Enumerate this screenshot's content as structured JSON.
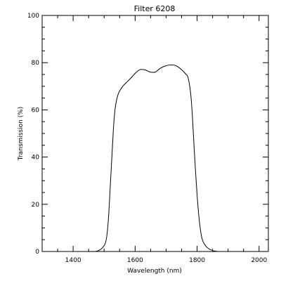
{
  "chart_data": {
    "type": "line",
    "title": "Filter 6208",
    "xlabel": "Wavelength (nm)",
    "ylabel": "Transmission (%)",
    "xlim": [
      1300,
      2030
    ],
    "ylim": [
      0,
      100
    ],
    "x_ticks": [
      1400,
      1600,
      1800,
      2000
    ],
    "y_ticks": [
      0,
      20,
      40,
      60,
      80,
      100
    ],
    "x_minor_step": 50,
    "y_minor_step": 5,
    "grid": false,
    "colors": {
      "line": "#000000",
      "axes": "#000000",
      "background": "#ffffff"
    },
    "series": [
      {
        "x": [
          1450,
          1470,
          1480,
          1490,
          1500,
          1505,
          1510,
          1515,
          1520,
          1525,
          1530,
          1535,
          1540,
          1545,
          1550,
          1560,
          1575,
          1590,
          1600,
          1615,
          1630,
          1640,
          1650,
          1665,
          1680,
          1695,
          1710,
          1725,
          1735,
          1750,
          1765,
          1770,
          1775,
          1780,
          1785,
          1790,
          1795,
          1800,
          1805,
          1810,
          1815,
          1820,
          1830,
          1840,
          1850,
          1860,
          1870,
          1885,
          1900
        ],
        "y": [
          0,
          0,
          0.3,
          1,
          2.5,
          4,
          8,
          16,
          28,
          40,
          52,
          60,
          64,
          66.5,
          68,
          70,
          72,
          74,
          75.5,
          77,
          77,
          76.5,
          76,
          76,
          77.5,
          78.5,
          79,
          79,
          78.5,
          77,
          75,
          74,
          71,
          66,
          57,
          45,
          34,
          24,
          16,
          10,
          6,
          4,
          2,
          1,
          0.4,
          0.1,
          0,
          0,
          0
        ]
      }
    ]
  }
}
